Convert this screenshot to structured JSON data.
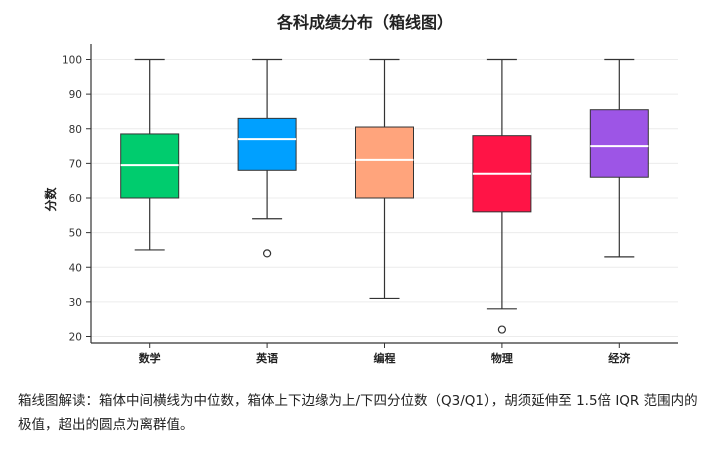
{
  "chart_data": {
    "type": "box",
    "title": "各科成绩分布（箱线图）",
    "xlabel": "",
    "ylabel": "分数",
    "ylim": [
      17,
      103
    ],
    "yticks": [
      20,
      30,
      40,
      50,
      60,
      70,
      80,
      90,
      100
    ],
    "grid": "horizontal",
    "categories": [
      "数学",
      "英语",
      "编程",
      "物理",
      "经济"
    ],
    "boxes": [
      {
        "category": "数学",
        "whisker_low": 45,
        "q1": 60,
        "median": 69.5,
        "q3": 78.5,
        "whisker_high": 100,
        "outliers": [],
        "color": "#00CC6E"
      },
      {
        "category": "英语",
        "whisker_low": 54,
        "q1": 68,
        "median": 77,
        "q3": 83,
        "whisker_high": 100,
        "outliers": [
          44
        ],
        "color": "#00A0FF"
      },
      {
        "category": "编程",
        "whisker_low": 31,
        "q1": 60,
        "median": 71,
        "q3": 80.5,
        "whisker_high": 100,
        "outliers": [],
        "color": "#FFA47C"
      },
      {
        "category": "物理",
        "whisker_low": 28,
        "q1": 56,
        "median": 67,
        "q3": 78,
        "whisker_high": 100,
        "outliers": [
          22
        ],
        "color": "#FF1446"
      },
      {
        "category": "经济",
        "whisker_low": 43,
        "q1": 66,
        "median": 75,
        "q3": 85.5,
        "whisker_high": 100,
        "outliers": [],
        "color": "#9D55E6"
      }
    ]
  },
  "caption": "箱线图解读：箱体中间横线为中位数，箱体上下边缘为上/下四分位数（Q3/Q1），胡须延伸至 1.5倍 IQR 范围内的极值，超出的圆点为离群值。"
}
